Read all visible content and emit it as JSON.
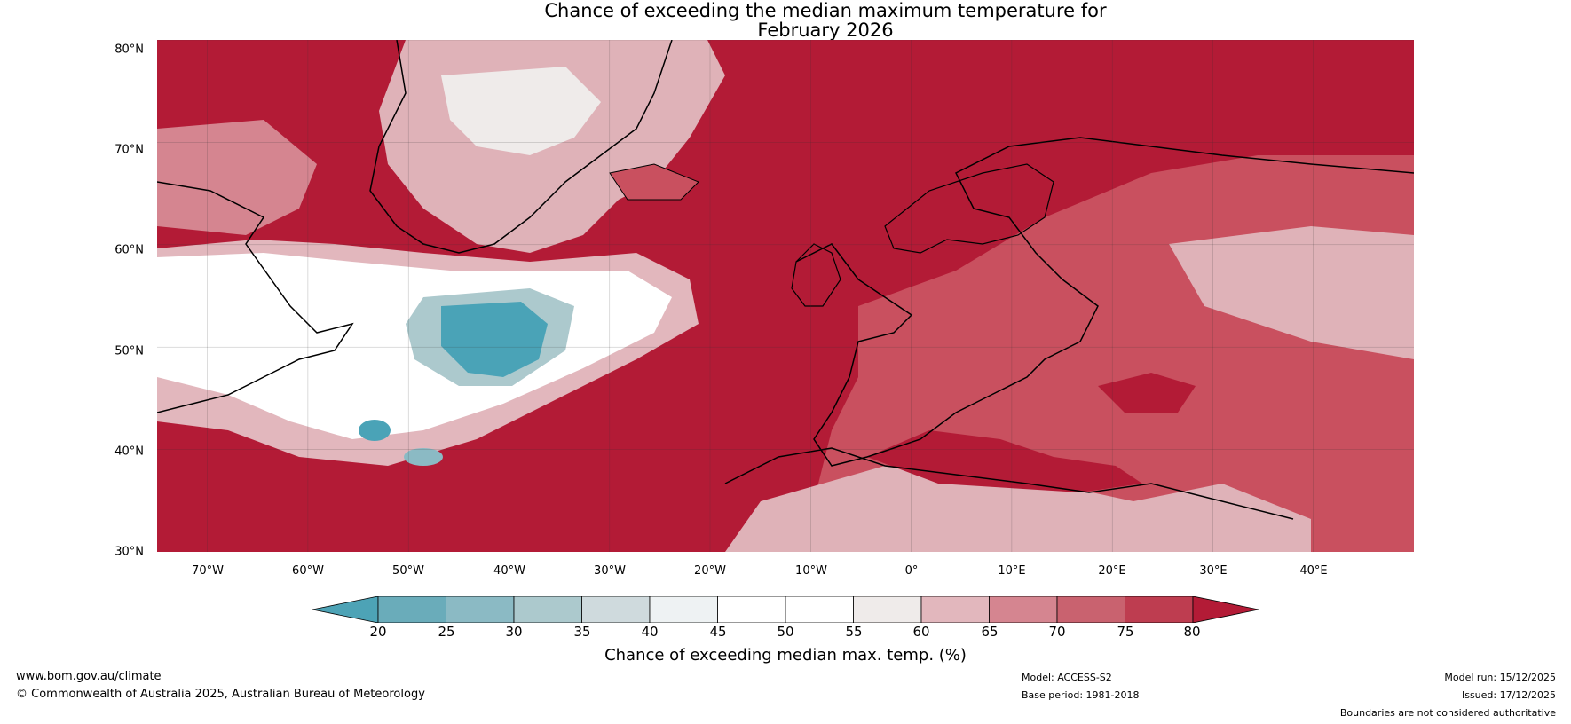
{
  "title": {
    "line1": "Chance of exceeding the median maximum temperature for",
    "line2": "February 2026"
  },
  "map": {
    "latitude_labels": [
      {
        "id": "lat-80",
        "text": "80°N"
      },
      {
        "id": "lat-70",
        "text": "70°N"
      },
      {
        "id": "lat-60",
        "text": "60°N"
      },
      {
        "id": "lat-50",
        "text": "50°N"
      },
      {
        "id": "lat-40",
        "text": "40°N"
      },
      {
        "id": "lat-30",
        "text": "30°N"
      }
    ],
    "longitude_labels": [
      {
        "id": "lon-70w",
        "text": "70°W"
      },
      {
        "id": "lon-60w",
        "text": "60°W"
      },
      {
        "id": "lon-50w",
        "text": "50°W"
      },
      {
        "id": "lon-40w",
        "text": "40°W"
      },
      {
        "id": "lon-30w",
        "text": "30°W"
      },
      {
        "id": "lon-20w",
        "text": "20°W"
      },
      {
        "id": "lon-10w",
        "text": "10°W"
      },
      {
        "id": "lon-0",
        "text": "0°"
      },
      {
        "id": "lon-10e",
        "text": "10°E"
      },
      {
        "id": "lon-20e",
        "text": "20°E"
      },
      {
        "id": "lon-30e",
        "text": "30°E"
      },
      {
        "id": "lon-40e",
        "text": "40°E"
      }
    ],
    "colors": {
      "ocean_high": "#b31b36",
      "land_mid": "#c9505f",
      "land_pale": "#dfb2b8",
      "neutral": "#ffffff",
      "blue_low": "#4aa3b7",
      "coast": "#000000",
      "border": "#888888"
    }
  },
  "colorbar": {
    "label": "Chance of exceeding median max. temp. (%)",
    "ticks": [
      "20",
      "25",
      "30",
      "35",
      "40",
      "45",
      "50",
      "55",
      "60",
      "65",
      "70",
      "75",
      "80"
    ],
    "colors": [
      "#4da3b6",
      "#6aacba",
      "#8bbac4",
      "#acc9cd",
      "#cfdadd",
      "#eef2f3",
      "#ffffff",
      "#ffffff",
      "#efebea",
      "#e2b7bd",
      "#d58590",
      "#c9626f",
      "#be3d50",
      "#b31b36"
    ]
  },
  "footer": {
    "website": "www.bom.gov.au/climate",
    "copyright": "© Commonwealth of Australia 2025, Australian Bureau of Meteorology",
    "model": "Model: ACCESS-S2",
    "base_period": "Base period: 1981-2018",
    "model_run": "Model run: 15/12/2025",
    "issued": "Issued: 17/12/2025",
    "disclaimer": "Boundaries are not considered authoritative"
  }
}
